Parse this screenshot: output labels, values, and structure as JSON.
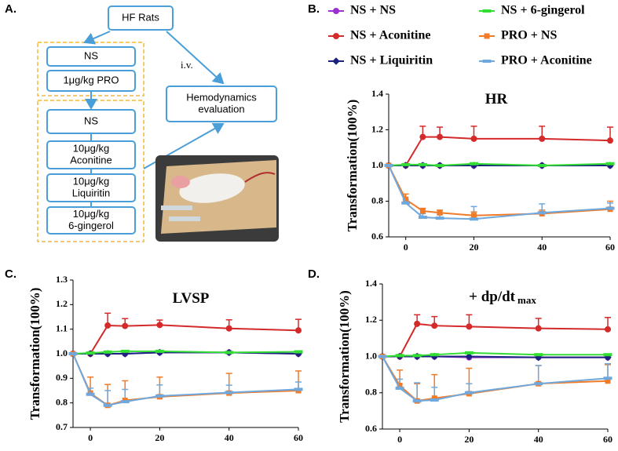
{
  "diagram": {
    "panel_label": "A.",
    "route": "i.v.",
    "nodes": [
      {
        "lines": [
          "HF Rats"
        ]
      },
      {
        "lines": [
          "NS"
        ]
      },
      {
        "lines": [
          "1μg/kg PRO"
        ]
      },
      {
        "lines": [
          "NS"
        ]
      },
      {
        "lines": [
          "10μg/kg",
          "Aconitine"
        ]
      },
      {
        "lines": [
          "10μg/kg",
          "Liquiritin"
        ]
      },
      {
        "lines": [
          "10μg/kg",
          "6-gingerol"
        ]
      },
      {
        "lines": [
          "Hemodynamics",
          "evaluation"
        ]
      }
    ]
  },
  "chart_data": [
    {
      "type": "line",
      "panel_label": "B.",
      "title": "HR",
      "y_label": "Transformation(100%)",
      "x": [
        -5,
        0,
        5,
        10,
        20,
        40,
        60
      ],
      "xlim": [
        -5,
        60
      ],
      "xticks": [
        0,
        20,
        40,
        60
      ],
      "ylim": [
        0.6,
        1.4
      ],
      "yticks": [
        0.6,
        0.8,
        {
          "value": 1,
          "label": "1.0"
        },
        1.2,
        1.4
      ],
      "series": [
        {
          "name": "NS + NS",
          "color": "#9b30d0",
          "marker": "circle",
          "values": [
            1,
            1,
            1,
            1,
            1,
            1,
            1
          ],
          "errors": [
            null,
            null,
            null,
            null,
            null,
            null,
            null
          ]
        },
        {
          "name": "NS + Aconitine",
          "color": "#d42a2a",
          "marker": "circle",
          "values": [
            1,
            1,
            1.16,
            1.16,
            1.15,
            1.15,
            1.14
          ],
          "errors": [
            null,
            null,
            0.06,
            0.055,
            0.07,
            0.07,
            0.075
          ]
        },
        {
          "name": "NS + Liquiritin",
          "color": "#1a237e",
          "marker": "diamond",
          "values": [
            1,
            1,
            1,
            1,
            1,
            1,
            1
          ],
          "errors": [
            null,
            null,
            null,
            null,
            null,
            null,
            null
          ]
        },
        {
          "name": "NS + 6-gingerol",
          "color": "#33dd33",
          "marker": "dash",
          "values": [
            1,
            1.005,
            1.005,
            1,
            1.01,
            1,
            1.01
          ],
          "errors": [
            null,
            null,
            null,
            null,
            null,
            null,
            null
          ]
        },
        {
          "name": "PRO + NS",
          "color": "#f07b28",
          "marker": "square",
          "values": [
            1,
            0.81,
            0.745,
            0.735,
            0.72,
            0.73,
            0.755
          ],
          "errors": [
            null,
            0.03,
            0.015,
            0.015,
            0.02,
            0.02,
            0.045
          ]
        },
        {
          "name": "PRO + Aconitine",
          "color": "#6fa8dc",
          "marker": "dash",
          "values": [
            1,
            0.79,
            0.71,
            0.705,
            0.7,
            0.735,
            0.76
          ],
          "errors": [
            null,
            0.02,
            0.02,
            0.02,
            0.07,
            0.05,
            0.03
          ]
        }
      ]
    },
    {
      "type": "line",
      "panel_label": "C.",
      "title": "LVSP",
      "y_label": "Transformation(100%)",
      "x": [
        -5,
        0,
        5,
        10,
        20,
        40,
        60
      ],
      "xlim": [
        -5,
        60
      ],
      "xticks": [
        0,
        20,
        40,
        60
      ],
      "ylim": [
        0.7,
        1.3
      ],
      "yticks": [
        0.7,
        0.8,
        0.9,
        {
          "value": 1,
          "label": "1.0"
        },
        1.1,
        1.2,
        1.3
      ],
      "series": [
        {
          "name": "NS + NS",
          "color": "#9b30d0",
          "marker": "circle",
          "values": [
            1,
            1,
            1,
            1,
            1.005,
            1.005,
            1
          ],
          "errors": [
            null,
            null,
            null,
            null,
            null,
            null,
            null
          ]
        },
        {
          "name": "NS + Aconitine",
          "color": "#d42a2a",
          "marker": "circle",
          "values": [
            1,
            1,
            1.115,
            1.113,
            1.117,
            1.103,
            1.095
          ],
          "errors": [
            null,
            null,
            0.05,
            0.03,
            0.02,
            0.035,
            0.045
          ]
        },
        {
          "name": "NS + Liquiritin",
          "color": "#1a237e",
          "marker": "diamond",
          "values": [
            1,
            1,
            1,
            1,
            1.005,
            1.005,
            1
          ],
          "errors": [
            null,
            null,
            null,
            null,
            null,
            null,
            null
          ]
        },
        {
          "name": "NS + 6-gingerol",
          "color": "#33dd33",
          "marker": "dash",
          "values": [
            1,
            1.003,
            1.007,
            1.01,
            1.01,
            1.005,
            1.008
          ],
          "errors": [
            null,
            null,
            null,
            null,
            null,
            null,
            null
          ]
        },
        {
          "name": "PRO + NS",
          "color": "#f07b28",
          "marker": "square",
          "values": [
            1,
            0.84,
            0.79,
            0.81,
            0.825,
            0.84,
            0.85
          ],
          "errors": [
            null,
            0.065,
            0.085,
            0.08,
            0.08,
            0.08,
            0.08
          ]
        },
        {
          "name": "PRO + Aconitine",
          "color": "#6fa8dc",
          "marker": "dash",
          "values": [
            1,
            0.835,
            0.79,
            0.805,
            0.828,
            0.842,
            0.855
          ],
          "errors": [
            null,
            0.025,
            0.06,
            0.05,
            0.045,
            0.03,
            0.03
          ]
        }
      ]
    },
    {
      "type": "line",
      "panel_label": "D.",
      "title": "+ dp/dt",
      "title_subscript": "max",
      "y_label": "Transformation(100%)",
      "x": [
        -5,
        0,
        5,
        10,
        20,
        40,
        60
      ],
      "xlim": [
        -5,
        60
      ],
      "xticks": [
        0,
        20,
        40,
        60
      ],
      "ylim": [
        0.6,
        1.4
      ],
      "yticks": [
        0.6,
        0.8,
        {
          "value": 1,
          "label": "1.0"
        },
        1.2,
        1.4
      ],
      "series": [
        {
          "name": "NS + NS",
          "color": "#9b30d0",
          "marker": "circle",
          "values": [
            1,
            1,
            1,
            1,
            0.995,
            0.995,
            0.995
          ],
          "errors": [
            null,
            null,
            null,
            null,
            null,
            null,
            null
          ]
        },
        {
          "name": "NS + Aconitine",
          "color": "#d42a2a",
          "marker": "circle",
          "values": [
            1,
            1,
            1.18,
            1.17,
            1.165,
            1.155,
            1.15
          ],
          "errors": [
            null,
            null,
            0.05,
            0.05,
            0.065,
            0.055,
            0.065
          ]
        },
        {
          "name": "NS + Liquiritin",
          "color": "#1a237e",
          "marker": "diamond",
          "values": [
            1,
            1,
            1,
            1,
            1,
            0.995,
            0.995
          ],
          "errors": [
            null,
            null,
            null,
            null,
            null,
            null,
            null
          ]
        },
        {
          "name": "NS + 6-gingerol",
          "color": "#33dd33",
          "marker": "dash",
          "values": [
            1,
            1.005,
            1.005,
            1.01,
            1.02,
            1.01,
            1.01
          ],
          "errors": [
            null,
            null,
            null,
            null,
            null,
            null,
            null
          ]
        },
        {
          "name": "PRO + NS",
          "color": "#f07b28",
          "marker": "square",
          "values": [
            1,
            0.84,
            0.755,
            0.77,
            0.795,
            0.85,
            0.865
          ],
          "errors": [
            null,
            0.085,
            0.095,
            0.13,
            0.14,
            0.1,
            0.09
          ]
        },
        {
          "name": "PRO + Aconitine",
          "color": "#6fa8dc",
          "marker": "dash",
          "values": [
            1,
            0.825,
            0.755,
            0.76,
            0.8,
            0.85,
            0.88
          ],
          "errors": [
            null,
            0.05,
            0.1,
            0.07,
            0.05,
            0.1,
            0.08
          ]
        }
      ]
    }
  ]
}
